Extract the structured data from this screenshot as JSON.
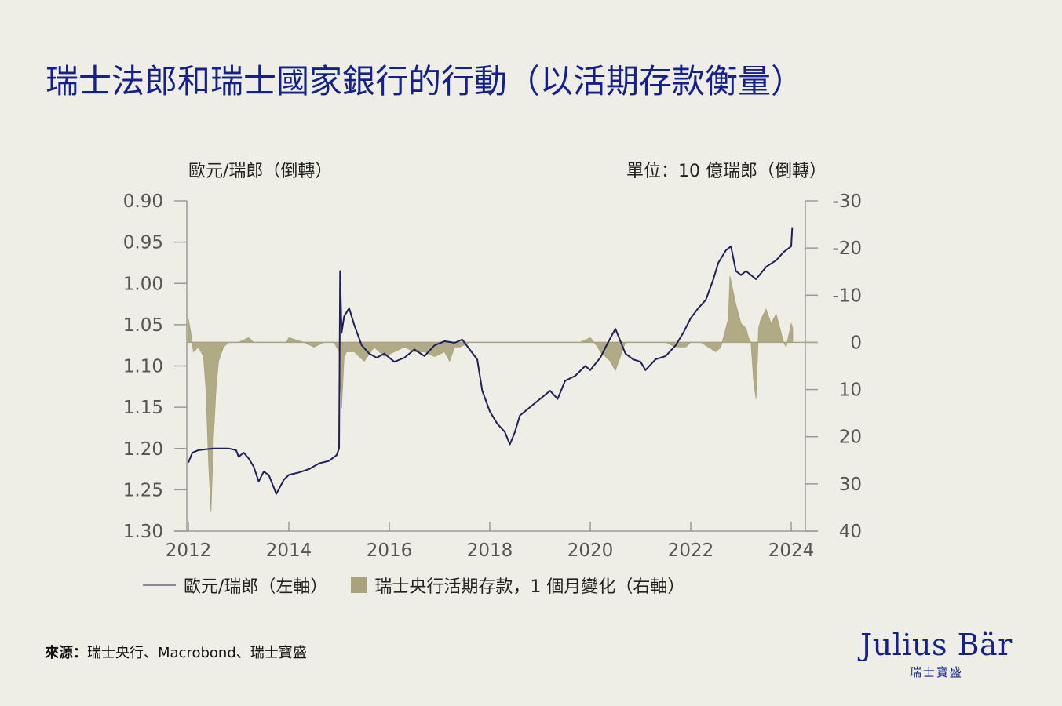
{
  "title": "瑞士法郎和瑞士國家銀行的行動（以活期存款衡量）",
  "left_axis_title": "歐元/瑞郎（倒轉）",
  "right_axis_title": "單位：10 億瑞郎（倒轉）",
  "legend": {
    "line_label": "歐元/瑞郎（左軸）",
    "bar_label": "瑞士央行活期存款，1 個月變化（右軸）"
  },
  "source": {
    "prefix": "來源：",
    "text": "瑞士央行、Macrobond、瑞士寶盛"
  },
  "logo": {
    "brand": "Julius Bär",
    "sub": "瑞士寶盛"
  },
  "colors": {
    "title": "#14218c",
    "line": "#1f1f5a",
    "area": "#a9a27a",
    "axis": "#9a9a9a",
    "background": "#efeee6"
  },
  "chart_data": {
    "type": "line",
    "title": "瑞士法郎和瑞士國家銀行的行動（以活期存款衡量）",
    "xlabel": "",
    "ylabel": "歐元/瑞郎（倒轉）",
    "y2label": "單位：10 億瑞郎（倒轉）",
    "x_ticks": [
      "2012",
      "2014",
      "2016",
      "2018",
      "2020",
      "2022",
      "2024"
    ],
    "y_left_ticks": [
      "0.90",
      "0.95",
      "1.00",
      "1.05",
      "1.10",
      "1.15",
      "1.20",
      "1.25",
      "1.30"
    ],
    "y_right_ticks": [
      "-30",
      "-20",
      "-10",
      "0",
      "10",
      "20",
      "30",
      "40"
    ],
    "ylim_left": [
      1.3,
      0.9
    ],
    "ylim_right": [
      40,
      -30
    ],
    "xlim": [
      2012.0,
      2024.5
    ],
    "legend_position": "bottom",
    "grid": false,
    "series": [
      {
        "name": "歐元/瑞郎（左軸）",
        "axis": "left",
        "type": "line",
        "x": [
          2012.0,
          2012.08,
          2012.2,
          2012.35,
          2012.5,
          2012.65,
          2012.8,
          2012.95,
          2013.0,
          2013.1,
          2013.2,
          2013.3,
          2013.4,
          2013.5,
          2013.6,
          2013.75,
          2013.9,
          2014.0,
          2014.2,
          2014.4,
          2014.6,
          2014.8,
          2014.95,
          2015.0,
          2015.02,
          2015.05,
          2015.1,
          2015.2,
          2015.3,
          2015.45,
          2015.6,
          2015.75,
          2015.9,
          2016.1,
          2016.3,
          2016.5,
          2016.7,
          2016.9,
          2017.1,
          2017.3,
          2017.45,
          2017.6,
          2017.75,
          2017.85,
          2018.0,
          2018.15,
          2018.3,
          2018.4,
          2018.5,
          2018.6,
          2018.8,
          2019.0,
          2019.2,
          2019.35,
          2019.5,
          2019.7,
          2019.9,
          2020.0,
          2020.2,
          2020.35,
          2020.5,
          2020.6,
          2020.7,
          2020.85,
          2021.0,
          2021.1,
          2021.3,
          2021.5,
          2021.7,
          2021.85,
          2022.0,
          2022.15,
          2022.3,
          2022.45,
          2022.55,
          2022.7,
          2022.8,
          2022.9,
          2023.0,
          2023.1,
          2023.3,
          2023.5,
          2023.7,
          2023.85,
          2024.0,
          2024.02
        ],
        "values": [
          1.217,
          1.205,
          1.202,
          1.201,
          1.2,
          1.2,
          1.2,
          1.202,
          1.21,
          1.205,
          1.212,
          1.222,
          1.24,
          1.228,
          1.232,
          1.255,
          1.238,
          1.232,
          1.229,
          1.225,
          1.218,
          1.215,
          1.208,
          1.2,
          0.985,
          1.06,
          1.04,
          1.03,
          1.05,
          1.075,
          1.085,
          1.09,
          1.085,
          1.095,
          1.09,
          1.08,
          1.088,
          1.075,
          1.07,
          1.072,
          1.068,
          1.08,
          1.092,
          1.13,
          1.155,
          1.17,
          1.18,
          1.195,
          1.18,
          1.16,
          1.15,
          1.14,
          1.13,
          1.14,
          1.118,
          1.112,
          1.1,
          1.105,
          1.09,
          1.072,
          1.055,
          1.07,
          1.085,
          1.092,
          1.095,
          1.105,
          1.092,
          1.088,
          1.075,
          1.06,
          1.042,
          1.03,
          1.02,
          0.995,
          0.975,
          0.96,
          0.955,
          0.985,
          0.99,
          0.985,
          0.995,
          0.98,
          0.972,
          0.962,
          0.955,
          0.933
        ]
      },
      {
        "name": "瑞士央行活期存款，1 個月變化（右軸）",
        "axis": "right",
        "type": "area",
        "x": [
          2012.0,
          2012.05,
          2012.1,
          2012.2,
          2012.3,
          2012.35,
          2012.4,
          2012.45,
          2012.5,
          2012.55,
          2012.6,
          2012.7,
          2012.8,
          2012.9,
          2013.0,
          2013.2,
          2013.3,
          2013.4,
          2013.6,
          2013.8,
          2013.95,
          2014.0,
          2014.3,
          2014.5,
          2014.7,
          2014.9,
          2015.0,
          2015.02,
          2015.05,
          2015.1,
          2015.15,
          2015.3,
          2015.5,
          2015.7,
          2015.9,
          2016.1,
          2016.3,
          2016.5,
          2016.7,
          2016.9,
          2017.1,
          2017.2,
          2017.3,
          2017.4,
          2017.6,
          2017.8,
          2018.0,
          2018.5,
          2019.0,
          2019.4,
          2019.6,
          2019.8,
          2020.0,
          2020.15,
          2020.2,
          2020.3,
          2020.4,
          2020.5,
          2020.6,
          2020.7,
          2020.9,
          2021.2,
          2021.5,
          2021.7,
          2021.9,
          2022.0,
          2022.2,
          2022.35,
          2022.5,
          2022.6,
          2022.65,
          2022.75,
          2022.78,
          2022.82,
          2022.9,
          2023.0,
          2023.1,
          2023.15,
          2023.2,
          2023.25,
          2023.3,
          2023.35,
          2023.4,
          2023.5,
          2023.6,
          2023.7,
          2023.8,
          2023.85,
          2023.9,
          2024.0,
          2024.03
        ],
        "values": [
          -5,
          -2,
          2,
          1,
          3,
          10,
          25,
          36,
          20,
          10,
          4,
          1,
          0,
          0,
          0,
          -1,
          0,
          0,
          0,
          0,
          0,
          -1,
          0,
          1,
          0,
          0,
          2,
          8,
          14,
          3,
          2,
          2,
          4,
          1,
          3,
          2,
          1,
          2,
          2,
          3,
          2,
          4,
          1,
          1,
          0,
          0,
          0,
          0,
          0,
          0,
          0,
          0,
          -1,
          1,
          2,
          3,
          4,
          6,
          3,
          0,
          0,
          0,
          0,
          1,
          1,
          0,
          0,
          1,
          2,
          1,
          -1,
          -5,
          -14,
          -12,
          -8,
          -4,
          -3,
          -1,
          0,
          8,
          12,
          -3,
          -5,
          -7,
          -4,
          -6,
          -2,
          0,
          1,
          -4,
          -3
        ]
      }
    ]
  }
}
